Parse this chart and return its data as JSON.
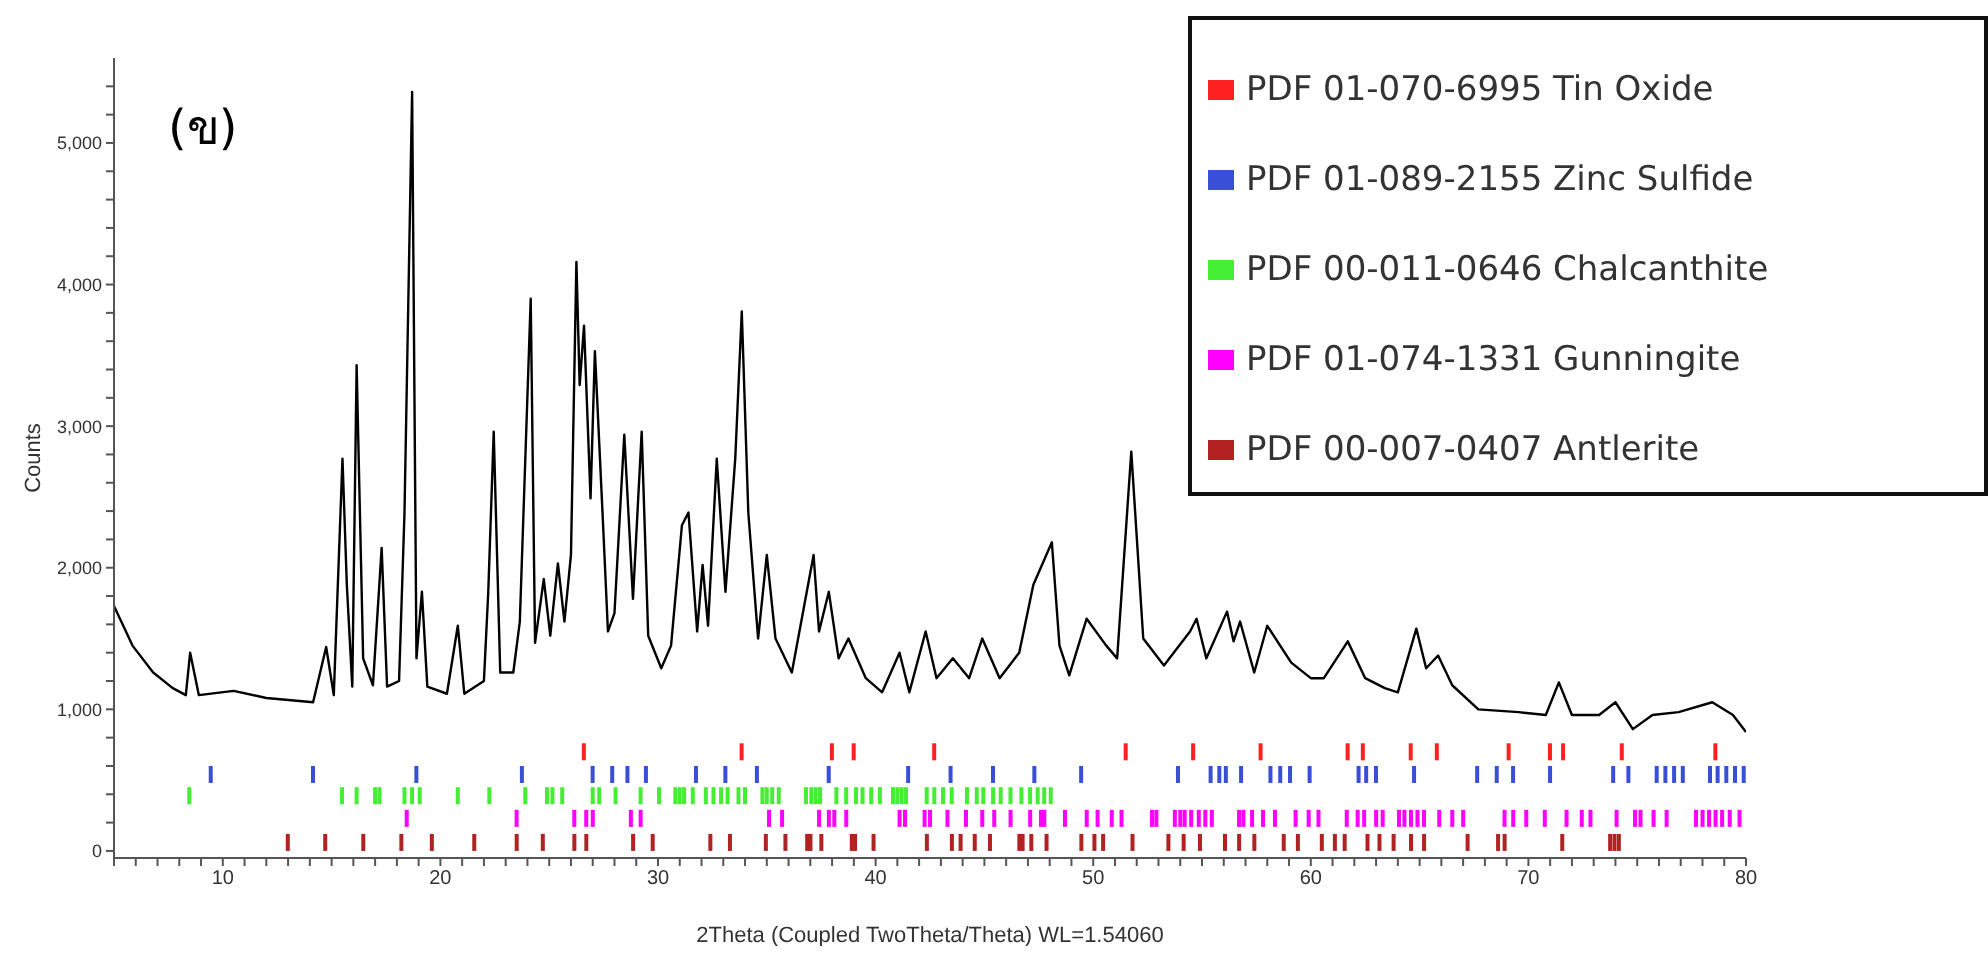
{
  "chart_data": {
    "type": "line",
    "xlabel": "2Theta (Coupled TwoTheta/Theta) WL=1.54060",
    "ylabel": "Counts",
    "annotations": [
      "(ข)"
    ],
    "legend": "top right",
    "xlim": [
      5,
      80
    ],
    "ylim": [
      -50,
      5600
    ],
    "xticks": [
      {
        "value": 5,
        "label": null
      },
      {
        "value": 6,
        "label": null
      },
      {
        "value": 7,
        "label": null
      },
      {
        "value": 8,
        "label": null
      },
      {
        "value": 9,
        "label": null
      },
      10,
      {
        "value": 11,
        "label": null
      },
      {
        "value": 12,
        "label": null
      },
      {
        "value": 13,
        "label": null
      },
      {
        "value": 14,
        "label": null
      },
      {
        "value": 15,
        "label": null
      },
      {
        "value": 16,
        "label": null
      },
      {
        "value": 17,
        "label": null
      },
      {
        "value": 18,
        "label": null
      },
      {
        "value": 19,
        "label": null
      },
      20,
      {
        "value": 21,
        "label": null
      },
      {
        "value": 22,
        "label": null
      },
      {
        "value": 23,
        "label": null
      },
      {
        "value": 24,
        "label": null
      },
      {
        "value": 25,
        "label": null
      },
      {
        "value": 26,
        "label": null
      },
      {
        "value": 27,
        "label": null
      },
      {
        "value": 28,
        "label": null
      },
      {
        "value": 29,
        "label": null
      },
      30,
      {
        "value": 31,
        "label": null
      },
      {
        "value": 32,
        "label": null
      },
      {
        "value": 33,
        "label": null
      },
      {
        "value": 34,
        "label": null
      },
      {
        "value": 35,
        "label": null
      },
      {
        "value": 36,
        "label": null
      },
      {
        "value": 37,
        "label": null
      },
      {
        "value": 38,
        "label": null
      },
      {
        "value": 39,
        "label": null
      },
      40,
      {
        "value": 41,
        "label": null
      },
      {
        "value": 42,
        "label": null
      },
      {
        "value": 43,
        "label": null
      },
      {
        "value": 44,
        "label": null
      },
      {
        "value": 45,
        "label": null
      },
      {
        "value": 46,
        "label": null
      },
      {
        "value": 47,
        "label": null
      },
      {
        "value": 48,
        "label": null
      },
      {
        "value": 49,
        "label": null
      },
      50,
      {
        "value": 51,
        "label": null
      },
      {
        "value": 52,
        "label": null
      },
      {
        "value": 53,
        "label": null
      },
      {
        "value": 54,
        "label": null
      },
      {
        "value": 55,
        "label": null
      },
      {
        "value": 56,
        "label": null
      },
      {
        "value": 57,
        "label": null
      },
      {
        "value": 58,
        "label": null
      },
      {
        "value": 59,
        "label": null
      },
      60,
      {
        "value": 61,
        "label": null
      },
      {
        "value": 62,
        "label": null
      },
      {
        "value": 63,
        "label": null
      },
      {
        "value": 64,
        "label": null
      },
      {
        "value": 65,
        "label": null
      },
      {
        "value": 66,
        "label": null
      },
      {
        "value": 67,
        "label": null
      },
      {
        "value": 68,
        "label": null
      },
      {
        "value": 69,
        "label": null
      },
      70,
      {
        "value": 71,
        "label": null
      },
      {
        "value": 72,
        "label": null
      },
      {
        "value": 73,
        "label": null
      },
      {
        "value": 74,
        "label": null
      },
      {
        "value": 75,
        "label": null
      },
      {
        "value": 76,
        "label": null
      },
      {
        "value": 77,
        "label": null
      },
      {
        "value": 78,
        "label": null
      },
      {
        "value": 79,
        "label": null
      },
      80
    ],
    "yticks": [
      0,
      {
        "value": 200,
        "label": null
      },
      {
        "value": 400,
        "label": null
      },
      {
        "value": 600,
        "label": null
      },
      {
        "value": 800,
        "label": null
      },
      {
        "value": 1000,
        "label": "1,000"
      },
      {
        "value": 1200,
        "label": null
      },
      {
        "value": 1400,
        "label": null
      },
      {
        "value": 1600,
        "label": null
      },
      {
        "value": 1800,
        "label": null
      },
      {
        "value": 2000,
        "label": "2,000"
      },
      {
        "value": 2200,
        "label": null
      },
      {
        "value": 2400,
        "label": null
      },
      {
        "value": 2600,
        "label": null
      },
      {
        "value": 2800,
        "label": null
      },
      {
        "value": 3000,
        "label": "3,000"
      },
      {
        "value": 3200,
        "label": null
      },
      {
        "value": 3400,
        "label": null
      },
      {
        "value": 3600,
        "label": null
      },
      {
        "value": 3800,
        "label": null
      },
      {
        "value": 4000,
        "label": "4,000"
      },
      {
        "value": 4200,
        "label": null
      },
      {
        "value": 4400,
        "label": null
      },
      {
        "value": 4600,
        "label": null
      },
      {
        "value": 4800,
        "label": null
      },
      {
        "value": 5000,
        "label": "5,000"
      },
      {
        "value": 5200,
        "label": null
      },
      {
        "value": 5400,
        "label": null
      }
    ],
    "series": [
      {
        "color": "#000000",
        "x": [
          5.0,
          5.85,
          6.8,
          7.7,
          8.3,
          8.5,
          8.9,
          10.5,
          12.0,
          14.15,
          14.75,
          15.1,
          15.5,
          15.7,
          15.95,
          16.15,
          16.45,
          16.9,
          17.3,
          17.55,
          18.1,
          18.35,
          18.7,
          18.9,
          19.15,
          19.4,
          20.3,
          20.8,
          21.1,
          22.0,
          22.2,
          22.45,
          22.75,
          23.35,
          23.65,
          24.15,
          24.35,
          24.75,
          25.05,
          25.4,
          25.7,
          26.0,
          26.25,
          26.4,
          26.6,
          26.9,
          27.1,
          27.45,
          27.7,
          28.0,
          28.45,
          28.85,
          29.25,
          29.55,
          30.15,
          30.6,
          31.1,
          31.4,
          31.8,
          32.05,
          32.3,
          32.7,
          33.1,
          33.55,
          33.85,
          34.15,
          34.6,
          35.0,
          35.4,
          36.15,
          37.15,
          37.4,
          37.85,
          38.3,
          38.75,
          39.55,
          40.3,
          41.1,
          41.55,
          42.3,
          42.8,
          43.55,
          44.3,
          44.9,
          45.7,
          46.6,
          47.25,
          48.1,
          48.45,
          48.9,
          49.7,
          50.6,
          51.1,
          51.75,
          52.3,
          53.25,
          54.45,
          54.75,
          55.2,
          56.15,
          56.45,
          56.75,
          57.4,
          58.0,
          59.1,
          60.0,
          60.6,
          61.7,
          62.5,
          63.4,
          64.0,
          64.85,
          65.3,
          65.85,
          66.5,
          67.7,
          69.55,
          70.8,
          71.4,
          72.0,
          73.25,
          74.0,
          74.8,
          75.7,
          76.9,
          78.45,
          79.4,
          80.0
        ],
        "values": [
          1730,
          1450,
          1260,
          1150,
          1100,
          1400,
          1100,
          1130,
          1080,
          1050,
          1440,
          1100,
          2770,
          1880,
          1160,
          3430,
          1360,
          1170,
          2140,
          1160,
          1200,
          2390,
          5360,
          1360,
          1830,
          1160,
          1110,
          1590,
          1110,
          1200,
          1830,
          2960,
          1260,
          1260,
          1620,
          3900,
          1470,
          1920,
          1520,
          2030,
          1620,
          2090,
          4160,
          3290,
          3710,
          2490,
          3530,
          2390,
          1550,
          1680,
          2940,
          1780,
          2960,
          1520,
          1290,
          1450,
          2300,
          2390,
          1550,
          2020,
          1590,
          2770,
          1830,
          2770,
          3810,
          2390,
          1500,
          2090,
          1500,
          1260,
          2090,
          1550,
          1830,
          1360,
          1500,
          1220,
          1120,
          1400,
          1120,
          1550,
          1220,
          1360,
          1220,
          1500,
          1220,
          1400,
          1880,
          2180,
          1450,
          1240,
          1640,
          1450,
          1360,
          2820,
          1500,
          1310,
          1550,
          1640,
          1360,
          1690,
          1480,
          1620,
          1260,
          1590,
          1330,
          1220,
          1220,
          1480,
          1220,
          1150,
          1120,
          1570,
          1290,
          1380,
          1170,
          1000,
          980,
          960,
          1190,
          960,
          960,
          1050,
          860,
          960,
          980,
          1050,
          960,
          840
        ]
      },
      {
        "type": "bar",
        "name": "PDF 01-070-6995 Tin Oxide",
        "color": "#ff2020",
        "x": [
          26.6,
          33.85,
          38.0,
          39.0,
          42.7,
          51.5,
          54.6,
          57.7,
          61.7,
          62.4,
          64.6,
          65.8,
          69.1,
          71.0,
          71.6,
          74.3,
          78.6
        ],
        "base": [
          640,
          640,
          640,
          640,
          640,
          640,
          640,
          640,
          640,
          640,
          640,
          640,
          640,
          640,
          640,
          640,
          640
        ],
        "values": [
          120,
          120,
          120,
          120,
          120,
          120,
          120,
          120,
          120,
          120,
          120,
          120,
          120,
          120,
          120,
          120,
          120
        ]
      },
      {
        "type": "bar",
        "name": "PDF 01-089-2155 Zinc Sulfide",
        "color": "#3a4fd8",
        "x": [
          9.45,
          14.15,
          18.9,
          23.75,
          27.0,
          27.9,
          28.6,
          29.45,
          31.75,
          33.1,
          34.55,
          37.85,
          41.5,
          43.45,
          45.4,
          47.3,
          49.45,
          53.9,
          55.4,
          55.8,
          56.1,
          56.8,
          58.15,
          58.6,
          59.05,
          59.95,
          62.2,
          62.55,
          63.0,
          64.75,
          67.65,
          68.55,
          69.3,
          71.0,
          73.9,
          74.6,
          75.9,
          76.3,
          76.7,
          77.1,
          78.35,
          78.7,
          79.1,
          79.5,
          79.9
        ],
        "base": [
          480,
          480,
          480,
          480,
          480,
          480,
          480,
          480,
          480,
          480,
          480,
          480,
          480,
          480,
          480,
          480,
          480,
          480,
          480,
          480,
          480,
          480,
          480,
          480,
          480,
          480,
          480,
          480,
          480,
          480,
          480,
          480,
          480,
          480,
          480,
          480,
          480,
          480,
          480,
          480,
          480,
          480,
          480,
          480,
          480
        ],
        "values": [
          120,
          120,
          120,
          120,
          120,
          120,
          120,
          120,
          120,
          120,
          120,
          120,
          120,
          120,
          120,
          120,
          120,
          120,
          120,
          120,
          120,
          120,
          120,
          120,
          120,
          120,
          120,
          120,
          120,
          120,
          120,
          120,
          120,
          120,
          120,
          120,
          120,
          120,
          120,
          120,
          120,
          120,
          120,
          120,
          120
        ]
      },
      {
        "type": "bar",
        "name": "PDF 00-011-0646 Chalcanthite",
        "color": "#44ee33",
        "x": [
          8.46,
          15.48,
          16.15,
          17.0,
          17.2,
          18.35,
          18.7,
          19.05,
          20.8,
          22.25,
          23.9,
          24.9,
          25.15,
          25.6,
          27.0,
          27.3,
          28.05,
          29.2,
          30.05,
          30.8,
          31.0,
          31.2,
          31.6,
          32.2,
          32.55,
          32.9,
          33.2,
          33.7,
          34.0,
          34.8,
          35.0,
          35.25,
          35.55,
          36.8,
          37.05,
          37.25,
          37.45,
          38.2,
          38.65,
          39.1,
          39.4,
          39.8,
          40.2,
          40.8,
          41.0,
          41.2,
          41.4,
          42.35,
          42.7,
          43.1,
          43.5,
          44.2,
          44.65,
          44.95,
          45.4,
          45.75,
          46.2,
          46.7,
          47.1,
          47.45,
          47.75,
          48.05
        ],
        "base": [
          330,
          330,
          330,
          330,
          330,
          330,
          330,
          330,
          330,
          330,
          330,
          330,
          330,
          330,
          330,
          330,
          330,
          330,
          330,
          330,
          330,
          330,
          330,
          330,
          330,
          330,
          330,
          330,
          330,
          330,
          330,
          330,
          330,
          330,
          330,
          330,
          330,
          330,
          330,
          330,
          330,
          330,
          330,
          330,
          330,
          330,
          330,
          330,
          330,
          330,
          330,
          330,
          330,
          330,
          330,
          330,
          330,
          330,
          330,
          330,
          330,
          330
        ],
        "values": [
          120,
          120,
          120,
          120,
          120,
          120,
          120,
          120,
          120,
          120,
          120,
          120,
          120,
          120,
          120,
          120,
          120,
          120,
          120,
          120,
          120,
          120,
          120,
          120,
          120,
          120,
          120,
          120,
          120,
          120,
          120,
          120,
          120,
          120,
          120,
          120,
          120,
          120,
          120,
          120,
          120,
          120,
          120,
          120,
          120,
          120,
          120,
          120,
          120,
          120,
          120,
          120,
          120,
          120,
          120,
          120,
          120,
          120,
          120,
          120,
          120,
          120
        ]
      },
      {
        "type": "bar",
        "name": "PDF 01-074-1331 Gunningite",
        "color": "#ff00ff",
        "x": [
          18.45,
          23.5,
          26.15,
          26.7,
          27.0,
          28.75,
          29.2,
          35.1,
          35.7,
          37.4,
          37.85,
          38.1,
          38.65,
          41.1,
          41.35,
          42.25,
          42.5,
          43.3,
          44.15,
          44.9,
          45.45,
          46.2,
          47.1,
          47.6,
          47.75,
          48.7,
          49.7,
          50.2,
          50.85,
          51.3,
          52.7,
          52.9,
          53.75,
          54.0,
          54.2,
          54.5,
          54.85,
          55.15,
          55.45,
          56.7,
          56.9,
          57.3,
          57.8,
          58.35,
          59.3,
          59.9,
          60.35,
          61.65,
          62.15,
          62.45,
          63.0,
          63.3,
          64.05,
          64.3,
          64.6,
          64.9,
          65.2,
          65.9,
          66.5,
          67.0,
          68.9,
          69.3,
          69.9,
          70.75,
          71.75,
          72.45,
          72.85,
          74.05,
          74.9,
          75.15,
          75.75,
          76.35,
          77.7,
          78.0,
          78.3,
          78.6,
          78.9,
          79.25,
          79.7
        ],
        "base": [
          170,
          170,
          170,
          170,
          170,
          170,
          170,
          170,
          170,
          170,
          170,
          170,
          170,
          170,
          170,
          170,
          170,
          170,
          170,
          170,
          170,
          170,
          170,
          170,
          170,
          170,
          170,
          170,
          170,
          170,
          170,
          170,
          170,
          170,
          170,
          170,
          170,
          170,
          170,
          170,
          170,
          170,
          170,
          170,
          170,
          170,
          170,
          170,
          170,
          170,
          170,
          170,
          170,
          170,
          170,
          170,
          170,
          170,
          170,
          170,
          170,
          170,
          170,
          170,
          170,
          170,
          170,
          170,
          170,
          170,
          170,
          170,
          170,
          170,
          170,
          170,
          170,
          170,
          170
        ],
        "values": [
          120,
          120,
          120,
          120,
          120,
          120,
          120,
          120,
          120,
          120,
          120,
          120,
          120,
          120,
          120,
          120,
          120,
          120,
          120,
          120,
          120,
          120,
          120,
          120,
          120,
          120,
          120,
          120,
          120,
          120,
          120,
          120,
          120,
          120,
          120,
          120,
          120,
          120,
          120,
          120,
          120,
          120,
          120,
          120,
          120,
          120,
          120,
          120,
          120,
          120,
          120,
          120,
          120,
          120,
          120,
          120,
          120,
          120,
          120,
          120,
          120,
          120,
          120,
          120,
          120,
          120,
          120,
          120,
          120,
          120,
          120,
          120,
          120,
          120,
          120,
          120,
          120,
          120,
          120
        ]
      },
      {
        "type": "bar",
        "name": "PDF 00-007-0407 Antlerite",
        "color": "#b22222",
        "x": [
          12.98,
          14.7,
          16.45,
          18.2,
          19.6,
          21.55,
          23.5,
          24.7,
          26.15,
          26.7,
          28.85,
          29.75,
          32.4,
          33.3,
          34.95,
          35.85,
          36.85,
          37.0,
          37.5,
          38.9,
          39.05,
          39.9,
          42.35,
          43.5,
          43.9,
          44.55,
          45.25,
          46.6,
          46.75,
          47.15,
          47.85,
          49.45,
          50.05,
          50.45,
          51.8,
          53.45,
          54.15,
          54.9,
          56.05,
          56.7,
          57.4,
          58.75,
          59.4,
          60.5,
          61.1,
          61.55,
          62.6,
          63.15,
          63.8,
          64.6,
          65.2,
          67.2,
          68.6,
          68.9,
          71.55,
          73.75,
          73.95,
          74.15
        ],
        "base": [
          0,
          0,
          0,
          0,
          0,
          0,
          0,
          0,
          0,
          0,
          0,
          0,
          0,
          0,
          0,
          0,
          0,
          0,
          0,
          0,
          0,
          0,
          0,
          0,
          0,
          0,
          0,
          0,
          0,
          0,
          0,
          0,
          0,
          0,
          0,
          0,
          0,
          0,
          0,
          0,
          0,
          0,
          0,
          0,
          0,
          0,
          0,
          0,
          0,
          0,
          0,
          0,
          0,
          0,
          0,
          0,
          0,
          0
        ],
        "values": [
          120,
          120,
          120,
          120,
          120,
          120,
          120,
          120,
          120,
          120,
          120,
          120,
          120,
          120,
          120,
          120,
          120,
          120,
          120,
          120,
          120,
          120,
          120,
          120,
          120,
          120,
          120,
          120,
          120,
          120,
          120,
          120,
          120,
          120,
          120,
          120,
          120,
          120,
          120,
          120,
          120,
          120,
          120,
          120,
          120,
          120,
          120,
          120,
          120,
          120,
          120,
          120,
          120,
          120,
          120,
          120,
          120,
          120
        ]
      }
    ]
  }
}
